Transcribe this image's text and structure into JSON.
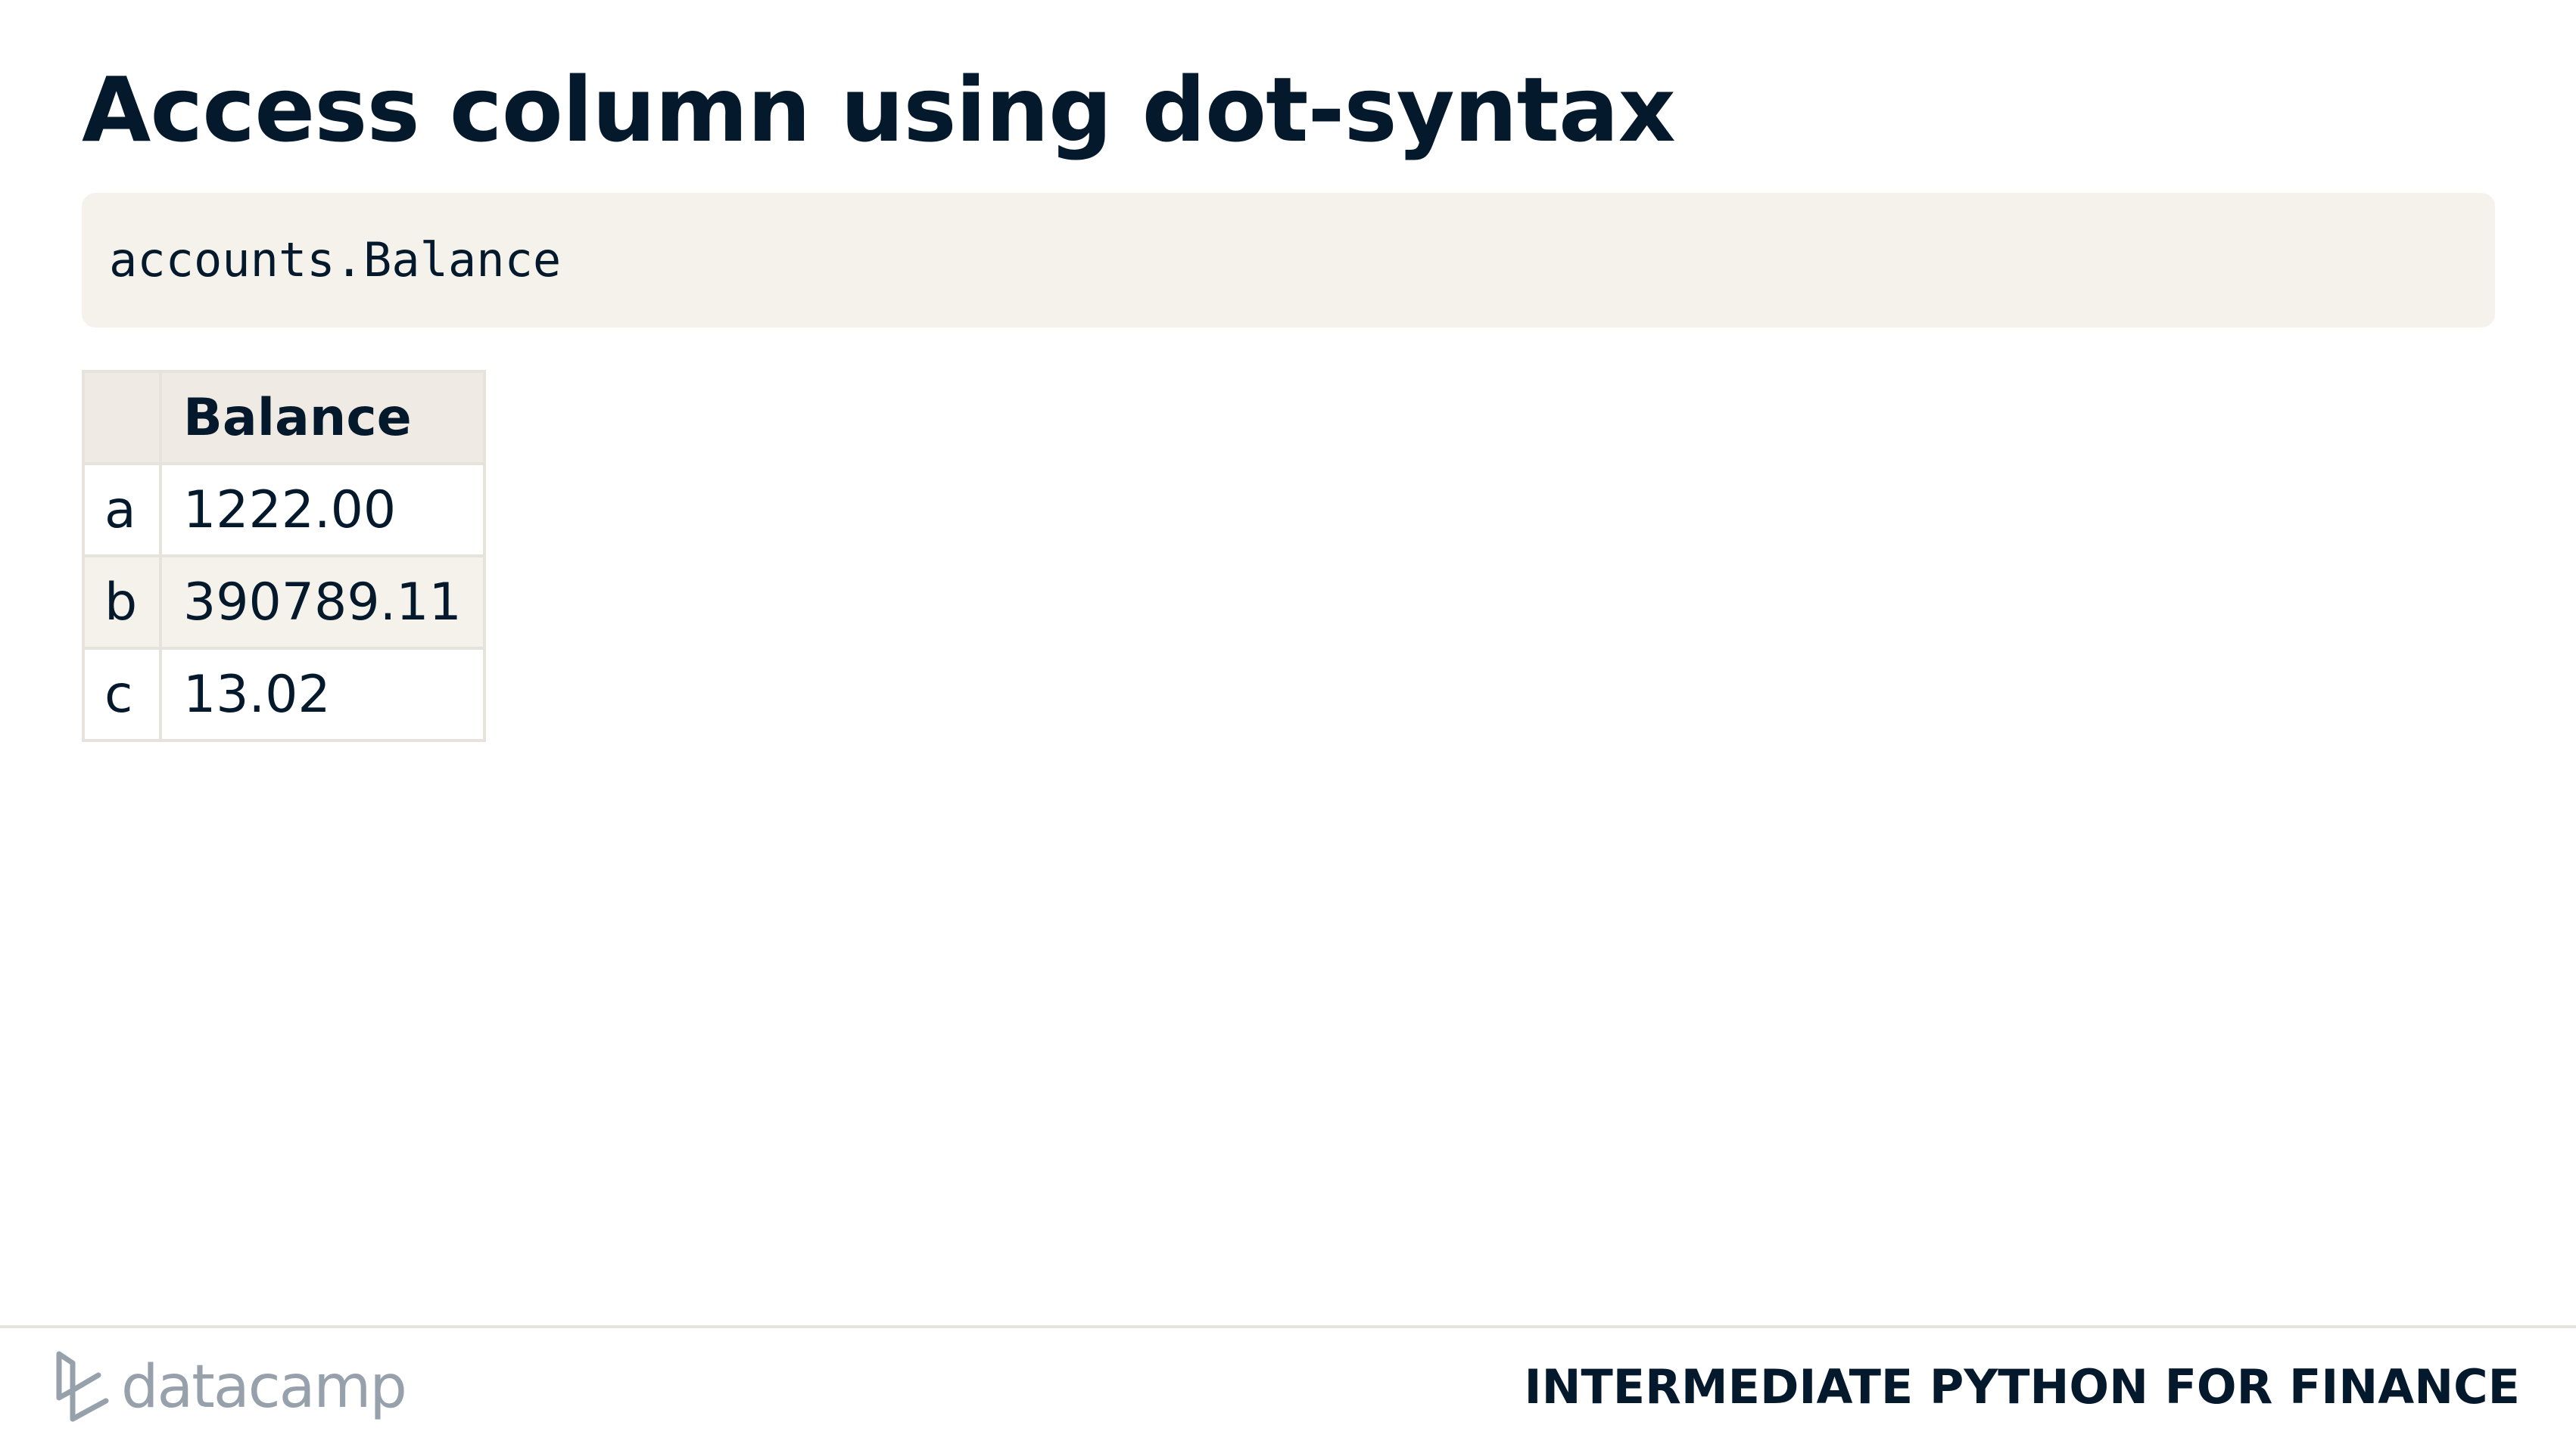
{
  "slide": {
    "title": "Access column using dot-syntax"
  },
  "code": {
    "text": "accounts.Balance"
  },
  "table": {
    "columns": [
      "",
      "Balance"
    ],
    "rows": [
      {
        "index": "a",
        "balance": "1222.00"
      },
      {
        "index": "b",
        "balance": "390789.11"
      },
      {
        "index": "c",
        "balance": "13.02"
      }
    ]
  },
  "footer": {
    "logo_text": "datacamp",
    "logo_icon": "datacamp-logo-icon",
    "course_title": "INTERMEDIATE PYTHON FOR FINANCE"
  },
  "colors": {
    "text": "#05192d",
    "code_background": "#f5f2eb",
    "table_header_background": "#efebe4",
    "table_border": "#e6e3dc",
    "logo_gray": "#97a1ab"
  }
}
